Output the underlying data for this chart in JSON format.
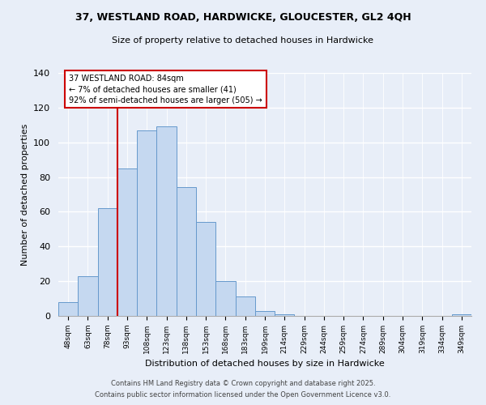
{
  "title": "37, WESTLAND ROAD, HARDWICKE, GLOUCESTER, GL2 4QH",
  "subtitle": "Size of property relative to detached houses in Hardwicke",
  "xlabel": "Distribution of detached houses by size in Hardwicke",
  "ylabel": "Number of detached properties",
  "bar_labels": [
    "48sqm",
    "63sqm",
    "78sqm",
    "93sqm",
    "108sqm",
    "123sqm",
    "138sqm",
    "153sqm",
    "168sqm",
    "183sqm",
    "199sqm",
    "214sqm",
    "229sqm",
    "244sqm",
    "259sqm",
    "274sqm",
    "289sqm",
    "304sqm",
    "319sqm",
    "334sqm",
    "349sqm"
  ],
  "bar_values": [
    8,
    23,
    62,
    85,
    107,
    109,
    74,
    54,
    20,
    11,
    3,
    1,
    0,
    0,
    0,
    0,
    0,
    0,
    0,
    0,
    1
  ],
  "bar_color": "#c5d8f0",
  "bar_edge_color": "#6699cc",
  "vline_color": "#cc0000",
  "annotation_title": "37 WESTLAND ROAD: 84sqm",
  "annotation_line1": "← 7% of detached houses are smaller (41)",
  "annotation_line2": "92% of semi-detached houses are larger (505) →",
  "annotation_box_color": "#ffffff",
  "annotation_box_edge": "#cc0000",
  "ylim": [
    0,
    140
  ],
  "yticks": [
    0,
    20,
    40,
    60,
    80,
    100,
    120,
    140
  ],
  "bg_color": "#e8eef8",
  "grid_color": "#ffffff",
  "footer1": "Contains HM Land Registry data © Crown copyright and database right 2025.",
  "footer2": "Contains public sector information licensed under the Open Government Licence v3.0."
}
